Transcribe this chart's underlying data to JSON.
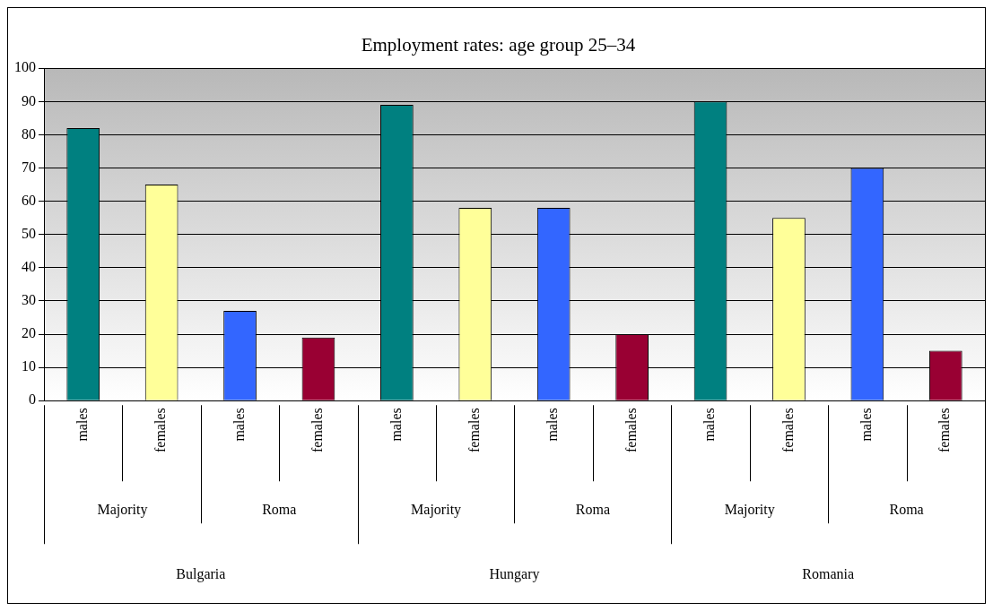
{
  "chart_data": {
    "type": "bar",
    "title": "Employment rates: age group 25–34",
    "categories": [
      "males",
      "females",
      "males",
      "females",
      "males",
      "females",
      "males",
      "females",
      "males",
      "females",
      "males",
      "females"
    ],
    "values": [
      82,
      65,
      27,
      19,
      89,
      58,
      58,
      20,
      90,
      55,
      70,
      15
    ],
    "colors": [
      "#008080",
      "#ffff99",
      "#3366ff",
      "#990033",
      "#008080",
      "#ffff99",
      "#3366ff",
      "#990033",
      "#008080",
      "#ffff99",
      "#3366ff",
      "#990033"
    ],
    "ylim": [
      0,
      100
    ],
    "yticks": [
      0,
      10,
      20,
      30,
      40,
      50,
      60,
      70,
      80,
      90,
      100
    ],
    "grid": "y",
    "legend": false,
    "annotations": [
      "Majority",
      "Roma",
      "Majority",
      "Roma",
      "Majority",
      "Roma",
      "Bulgaria",
      "Hungary",
      "Romania"
    ]
  }
}
